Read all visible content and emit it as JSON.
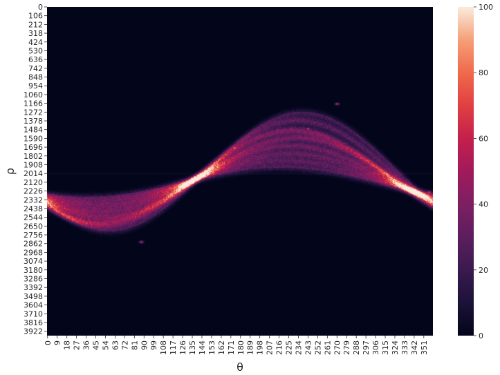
{
  "chart_data": {
    "type": "heatmap",
    "xlabel": "θ",
    "ylabel": "ρ",
    "x_ticks": [
      "0",
      "9",
      "18",
      "27",
      "36",
      "45",
      "54",
      "63",
      "72",
      "81",
      "90",
      "99",
      "108",
      "117",
      "126",
      "135",
      "144",
      "153",
      "162",
      "171",
      "180",
      "189",
      "198",
      "207",
      "216",
      "225",
      "234",
      "243",
      "252",
      "261",
      "270",
      "279",
      "288",
      "297",
      "306",
      "315",
      "324",
      "333",
      "342",
      "351"
    ],
    "y_ticks": [
      "0",
      "106",
      "212",
      "318",
      "424",
      "530",
      "636",
      "742",
      "848",
      "954",
      "1060",
      "1166",
      "1272",
      "1378",
      "1484",
      "1590",
      "1696",
      "1802",
      "1908",
      "2014",
      "2120",
      "2226",
      "2332",
      "2438",
      "2544",
      "2650",
      "2756",
      "2862",
      "2968",
      "3074",
      "3180",
      "3286",
      "3392",
      "3498",
      "3604",
      "3710",
      "3816",
      "3922"
    ],
    "x_range": [
      0,
      360
    ],
    "y_range": [
      0,
      3975
    ],
    "colorbar": {
      "ticks": [
        "0",
        "20",
        "40",
        "60",
        "80",
        "100"
      ],
      "min": 0,
      "max": 100,
      "colormap": "rocket"
    },
    "curves": [
      {
        "base": 2050,
        "amp": 560,
        "phase": 230,
        "peak": 55
      },
      {
        "base": 2060,
        "amp": 480,
        "phase": 232,
        "peak": 50
      },
      {
        "base": 2075,
        "amp": 400,
        "phase": 228,
        "peak": 45
      },
      {
        "base": 2090,
        "amp": 320,
        "phase": 226,
        "peak": 40
      },
      {
        "base": 2105,
        "amp": 250,
        "phase": 222,
        "peak": 35
      },
      {
        "base": 2010,
        "amp": 640,
        "phase": 234,
        "peak": 35
      },
      {
        "base": 1990,
        "amp": 720,
        "phase": 238,
        "peak": 25
      },
      {
        "base": 2120,
        "amp": 180,
        "phase": 218,
        "peak": 30
      }
    ],
    "hotspots": [
      {
        "theta": 175,
        "rho": 1700,
        "value": 95
      },
      {
        "theta": 243,
        "rho": 1470,
        "value": 70
      },
      {
        "theta": 2,
        "rho": 2390,
        "value": 80
      },
      {
        "theta": 356,
        "rho": 2240,
        "value": 75
      },
      {
        "theta": 55,
        "rho": 2510,
        "value": 60
      },
      {
        "theta": 88,
        "rho": 2840,
        "value": 55
      },
      {
        "theta": 270,
        "rho": 1170,
        "value": 55
      },
      {
        "theta": 200,
        "rho": 1560,
        "value": 60
      },
      {
        "theta": 188,
        "rho": 1560,
        "value": 55
      },
      {
        "theta": 215,
        "rho": 1490,
        "value": 55
      },
      {
        "theta": 35,
        "rho": 2470,
        "value": 50
      },
      {
        "theta": 272,
        "rho": 2000,
        "value": 45
      }
    ]
  }
}
